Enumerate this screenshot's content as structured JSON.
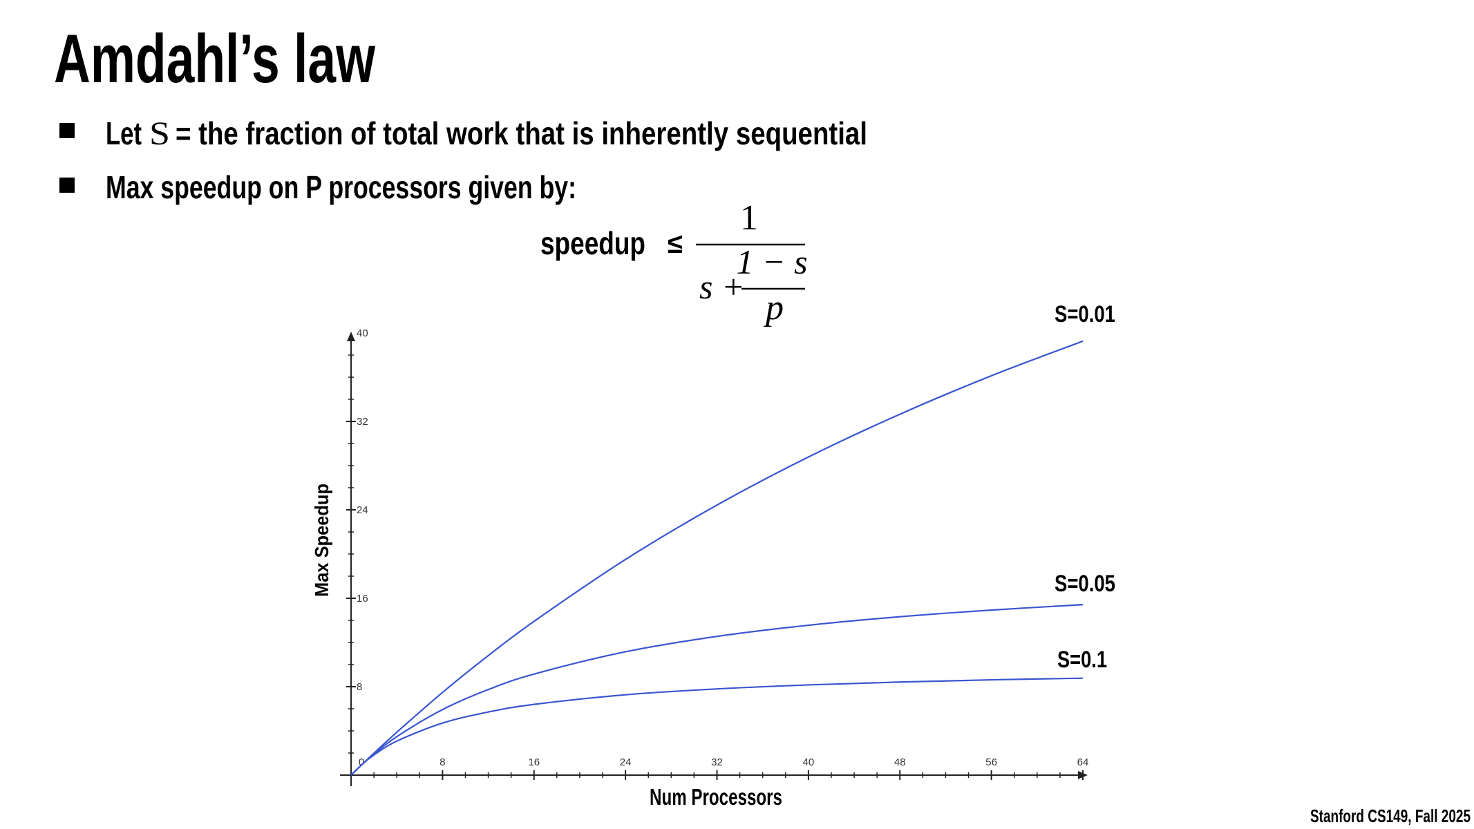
{
  "slide": {
    "title": "Amdahl’s law",
    "bullets": [
      {
        "prefix": "Let",
        "symbol": "S",
        "rest": "= the fraction of total work that is inherently sequential"
      },
      {
        "text": "Max speedup on P processors given by:"
      }
    ],
    "formula": {
      "lhs": "speedup",
      "relation": "≤",
      "numerator": "1",
      "denominator_left": "s +",
      "inner_numerator": "1 − s",
      "inner_denominator": "p"
    },
    "footer": "Stanford CS149, Fall 2025"
  },
  "chart_data": {
    "type": "line",
    "title": "",
    "xlabel": "Num Processors",
    "ylabel": "Max Speedup",
    "xlim": [
      0,
      64
    ],
    "ylim": [
      0,
      40
    ],
    "xticks": [
      "0",
      "8",
      "16",
      "24",
      "32",
      "40",
      "48",
      "56",
      "64"
    ],
    "yticks": [
      "8",
      "16",
      "24",
      "32",
      "40"
    ],
    "grid": false,
    "line_color": "#3a55d0",
    "x": [
      0,
      1,
      2,
      4,
      8,
      12,
      16,
      24,
      32,
      40,
      48,
      56,
      64
    ],
    "series": [
      {
        "name": "S=0.01",
        "values": [
          0,
          1,
          1.98,
          3.88,
          7.48,
          10.81,
          13.91,
          19.51,
          24.43,
          28.78,
          32.65,
          36.13,
          39.26
        ]
      },
      {
        "name": "S=0.05",
        "values": [
          0,
          1,
          1.9,
          3.48,
          5.93,
          7.74,
          9.14,
          11.16,
          12.55,
          13.56,
          14.33,
          14.93,
          15.42
        ]
      },
      {
        "name": "S=0.1",
        "values": [
          0,
          1,
          1.82,
          3.08,
          4.71,
          5.71,
          6.4,
          7.27,
          7.8,
          8.16,
          8.42,
          8.62,
          8.77
        ]
      }
    ]
  }
}
